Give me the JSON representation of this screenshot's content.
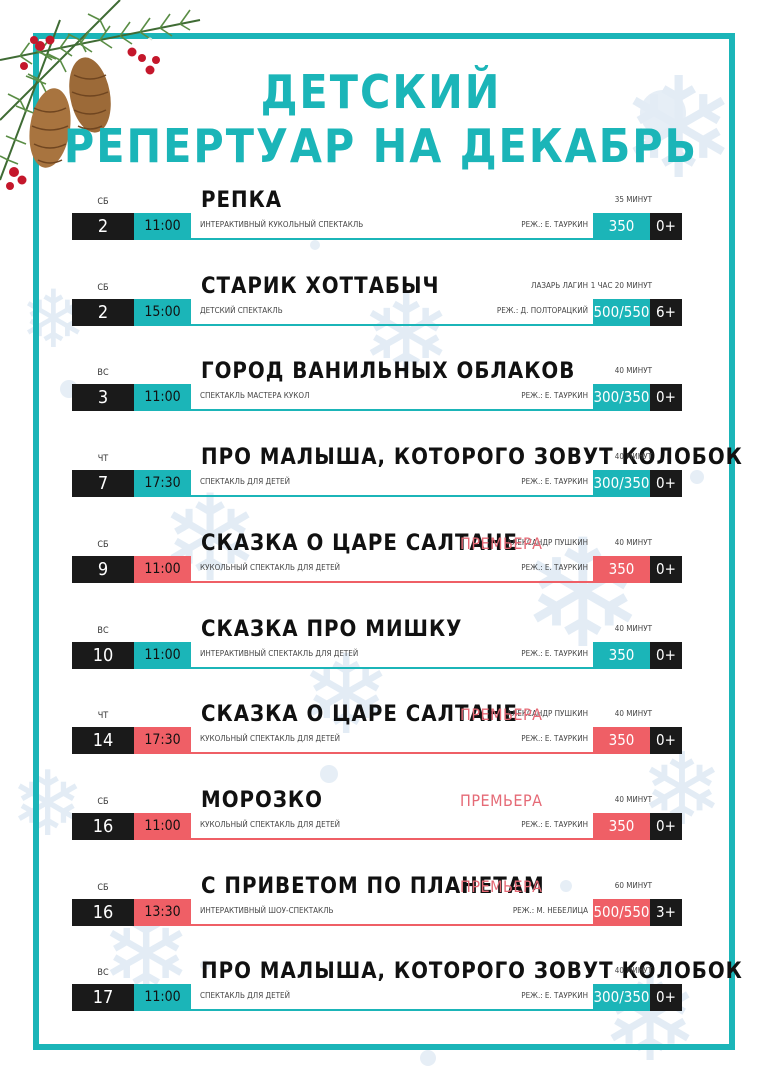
{
  "title": {
    "line1": "ДЕТСКИЙ",
    "line2": "РЕПЕРТУАР НА ДЕКАБРЬ"
  },
  "colors": {
    "teal": "#1bb5b8",
    "red": "#ef5f66",
    "black": "#1a1a1a"
  },
  "events": [
    {
      "weekday": "СБ",
      "date": "2",
      "time": "11:00",
      "title": "РЕПКА",
      "genre": "ИНТЕРАКТИВНЫЙ КУКОЛЬНЫЙ СПЕКТАКЛЬ",
      "director": "РЕЖ.: Е. ТАУРКИН",
      "author": "",
      "duration": "35 МИНУТ",
      "premiere": "",
      "price": "350",
      "age": "0+",
      "accent": "teal"
    },
    {
      "weekday": "СБ",
      "date": "2",
      "time": "15:00",
      "title": "СТАРИК ХОТТАБЫЧ",
      "genre": "ДЕТСКИЙ СПЕКТАКЛЬ",
      "director": "РЕЖ.: Д. ПОЛТОРАЦКИЙ",
      "author": "ЛАЗАРЬ ЛАГИН",
      "duration": "1 ЧАС 20 МИНУТ",
      "premiere": "",
      "price": "500/550",
      "age": "6+",
      "accent": "teal"
    },
    {
      "weekday": "ВС",
      "date": "3",
      "time": "11:00",
      "title": "ГОРОД ВАНИЛЬНЫХ ОБЛАКОВ",
      "genre": "СПЕКТАКЛЬ МАСТЕРА КУКОЛ",
      "director": "РЕЖ.: Е. ТАУРКИН",
      "author": "",
      "duration": "40 МИНУТ",
      "premiere": "",
      "price": "300/350",
      "age": "0+",
      "accent": "teal"
    },
    {
      "weekday": "ЧТ",
      "date": "7",
      "time": "17:30",
      "title": "ПРО МАЛЫША, КОТОРОГО ЗОВУТ КОЛОБОК",
      "genre": "СПЕКТАКЛЬ ДЛЯ ДЕТЕЙ",
      "director": "РЕЖ.: Е. ТАУРКИН",
      "author": "",
      "duration": "40 МИНУТ",
      "premiere": "",
      "price": "300/350",
      "age": "0+",
      "accent": "teal"
    },
    {
      "weekday": "СБ",
      "date": "9",
      "time": "11:00",
      "title": "СКАЗКА О ЦАРЕ САЛТАНЕ",
      "genre": "КУКОЛЬНЫЙ СПЕКТАКЛЬ ДЛЯ ДЕТЕЙ",
      "director": "РЕЖ.: Е. ТАУРКИН",
      "author": "АЛЕКСАНДР ПУШКИН",
      "duration": "40 МИНУТ",
      "premiere": "ПРЕМЬЕРА",
      "price": "350",
      "age": "0+",
      "accent": "red"
    },
    {
      "weekday": "ВС",
      "date": "10",
      "time": "11:00",
      "title": "СКАЗКА ПРО МИШКУ",
      "genre": "ИНТЕРАКТИВНЫЙ СПЕКТАКЛЬ ДЛЯ ДЕТЕЙ",
      "director": "РЕЖ.: Е. ТАУРКИН",
      "author": "",
      "duration": "40 МИНУТ",
      "premiere": "",
      "price": "350",
      "age": "0+",
      "accent": "teal"
    },
    {
      "weekday": "ЧТ",
      "date": "14",
      "time": "17:30",
      "title": "СКАЗКА О ЦАРЕ САЛТАНЕ",
      "genre": "КУКОЛЬНЫЙ СПЕКТАКЛЬ ДЛЯ ДЕТЕЙ",
      "director": "РЕЖ.: Е. ТАУРКИН",
      "author": "АЛЕКСАНДР ПУШКИН",
      "duration": "40 МИНУТ",
      "premiere": "ПРЕМЬЕРА",
      "price": "350",
      "age": "0+",
      "accent": "red"
    },
    {
      "weekday": "СБ",
      "date": "16",
      "time": "11:00",
      "title": "МОРОЗКО",
      "genre": "КУКОЛЬНЫЙ СПЕКТАКЛЬ ДЛЯ ДЕТЕЙ",
      "director": "РЕЖ.: Е. ТАУРКИН",
      "author": "",
      "duration": "40 МИНУТ",
      "premiere": "ПРЕМЬЕРА",
      "price": "350",
      "age": "0+",
      "accent": "red"
    },
    {
      "weekday": "СБ",
      "date": "16",
      "time": "13:30",
      "title": "С ПРИВЕТОМ ПО ПЛАНЕТАМ",
      "genre": "ИНТЕРАКТИВНЫЙ ШОУ-СПЕКТАКЛЬ",
      "director": "РЕЖ.: М. НЕБЕЛИЦА",
      "author": "",
      "duration": "60 МИНУТ",
      "premiere": "ПРЕМЬЕРА",
      "price": "500/550",
      "age": "3+",
      "accent": "red"
    },
    {
      "weekday": "ВС",
      "date": "17",
      "time": "11:00",
      "title": "ПРО МАЛЫША, КОТОРОГО ЗОВУТ КОЛОБОК",
      "genre": "СПЕКТАКЛЬ ДЛЯ ДЕТЕЙ",
      "director": "РЕЖ.: Е. ТАУРКИН",
      "author": "",
      "duration": "40 МИНУТ",
      "premiere": "",
      "price": "300/350",
      "age": "0+",
      "accent": "teal"
    }
  ]
}
